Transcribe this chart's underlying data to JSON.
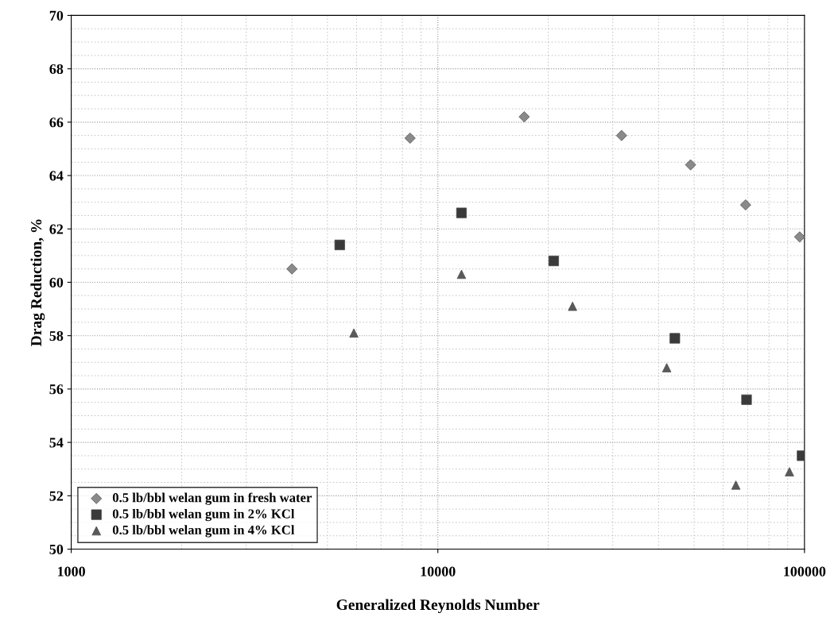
{
  "chart_data": {
    "type": "scatter",
    "xlabel": "Generalized Reynolds Number",
    "ylabel": "Drag Reduction, %",
    "log": "x",
    "xlim": [
      1000,
      100000
    ],
    "xticks": [
      1000,
      10000,
      100000
    ],
    "ylim": [
      50,
      70
    ],
    "yticks": [
      50,
      52,
      54,
      56,
      58,
      60,
      62,
      64,
      66,
      68,
      70
    ],
    "grid": true,
    "legend": "bottom left",
    "series": [
      {
        "name": "0.5 lb/bbl welan gum in fresh water",
        "color": "#8a8a8a",
        "marker": "diamond",
        "x": [
          4000,
          8400,
          17200,
          31700,
          48900,
          69100,
          97000
        ],
        "values": [
          60.5,
          65.4,
          66.2,
          65.5,
          64.4,
          62.9,
          61.7
        ]
      },
      {
        "name": "0.5 lb/bbl welan gum in 2% KCl",
        "color": "#3a3a3a",
        "marker": "square",
        "x": [
          5400,
          11600,
          20700,
          44300,
          69500,
          98500
        ],
        "values": [
          61.4,
          62.6,
          60.8,
          57.9,
          55.6,
          53.5
        ]
      },
      {
        "name": "0.5 lb/bbl welan gum in 4% KCl",
        "color": "#5a5a5a",
        "marker": "triangle",
        "x": [
          5900,
          11600,
          23300,
          42100,
          65000,
          91000
        ],
        "values": [
          58.1,
          60.3,
          59.1,
          56.8,
          52.4,
          52.9
        ]
      }
    ]
  }
}
